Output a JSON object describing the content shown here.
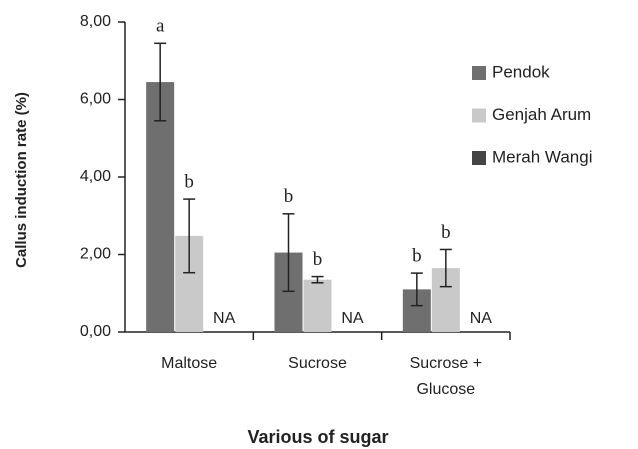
{
  "chart_data": {
    "type": "bar",
    "x_label": "Various of sugar",
    "y_label": "Callus induction rate (%)",
    "categories": [
      "Maltose",
      "Sucrose",
      "Sucrose +\nGlucose"
    ],
    "series": [
      {
        "name": "Pendok",
        "color": "#6f6f6f",
        "values": [
          6.45,
          2.05,
          1.1
        ],
        "errors": [
          1.0,
          1.0,
          0.42
        ],
        "letters": [
          "a",
          "b",
          "b"
        ]
      },
      {
        "name": "Genjah Arum",
        "color": "#c9c9c9",
        "values": [
          2.48,
          1.35,
          1.65
        ],
        "errors": [
          0.95,
          0.08,
          0.48
        ],
        "letters": [
          "b",
          "b",
          "b"
        ]
      },
      {
        "name": "Merah Wangi",
        "color": "#444444",
        "values": [
          null,
          null,
          null
        ],
        "value_labels": [
          "NA",
          "NA",
          "NA"
        ]
      }
    ],
    "ylim": [
      0,
      8
    ],
    "yticks": [
      {
        "value": 0,
        "label": "0,00"
      },
      {
        "value": 2,
        "label": "2,00"
      },
      {
        "value": 4,
        "label": "4,00"
      },
      {
        "value": 6,
        "label": "6,00"
      },
      {
        "value": 8,
        "label": "8,00"
      }
    ],
    "legend": "right"
  }
}
